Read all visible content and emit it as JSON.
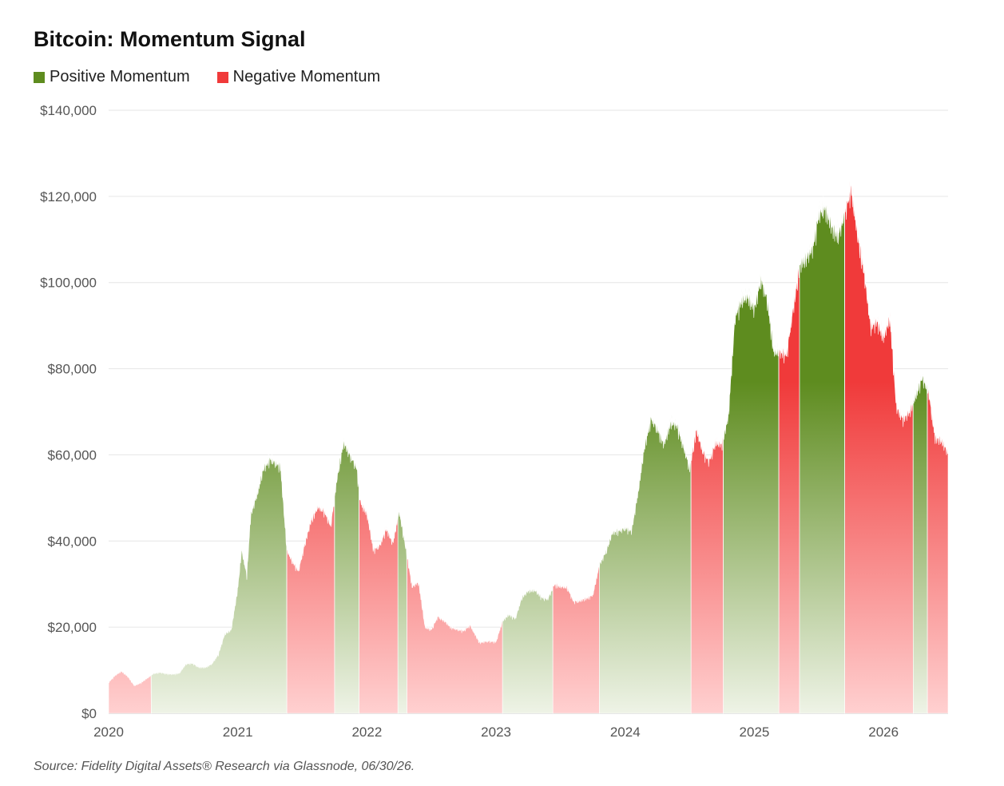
{
  "chart_data": {
    "type": "area",
    "title": "Bitcoin: Momentum Signal",
    "xlabel": "",
    "ylabel": "",
    "x_ticks": [
      "2020",
      "2021",
      "2022",
      "2023",
      "2024",
      "2025",
      "2026"
    ],
    "y_ticks": [
      "$0",
      "$20,000",
      "$40,000",
      "$60,000",
      "$80,000",
      "$100,000",
      "$120,000",
      "$140,000"
    ],
    "xlim": [
      2020.0,
      2026.5
    ],
    "ylim": [
      0,
      140000
    ],
    "grid": true,
    "legend_position": "top-left",
    "series": [
      {
        "name": "Positive Momentum",
        "color": "#5e8c1f"
      },
      {
        "name": "Negative Momentum",
        "color": "#f03a3a"
      }
    ],
    "price": [
      [
        2020.0,
        7200
      ],
      [
        2020.05,
        8800
      ],
      [
        2020.1,
        9800
      ],
      [
        2020.15,
        8500
      ],
      [
        2020.2,
        6400
      ],
      [
        2020.25,
        7100
      ],
      [
        2020.3,
        8200
      ],
      [
        2020.35,
        9300
      ],
      [
        2020.4,
        9500
      ],
      [
        2020.45,
        9200
      ],
      [
        2020.5,
        9100
      ],
      [
        2020.55,
        9400
      ],
      [
        2020.6,
        11500
      ],
      [
        2020.65,
        11600
      ],
      [
        2020.7,
        10700
      ],
      [
        2020.75,
        10700
      ],
      [
        2020.8,
        11500
      ],
      [
        2020.85,
        13700
      ],
      [
        2020.9,
        18500
      ],
      [
        2020.95,
        19500
      ],
      [
        2021.0,
        29000
      ],
      [
        2021.03,
        38000
      ],
      [
        2021.07,
        32000
      ],
      [
        2021.1,
        46000
      ],
      [
        2021.15,
        51000
      ],
      [
        2021.2,
        57000
      ],
      [
        2021.25,
        59000
      ],
      [
        2021.3,
        58000
      ],
      [
        2021.33,
        57500
      ],
      [
        2021.38,
        38000
      ],
      [
        2021.42,
        35500
      ],
      [
        2021.47,
        33000
      ],
      [
        2021.52,
        39500
      ],
      [
        2021.57,
        45000
      ],
      [
        2021.62,
        48000
      ],
      [
        2021.67,
        47000
      ],
      [
        2021.72,
        43500
      ],
      [
        2021.77,
        55000
      ],
      [
        2021.82,
        63000
      ],
      [
        2021.87,
        60000
      ],
      [
        2021.92,
        57000
      ],
      [
        2021.95,
        49000
      ],
      [
        2022.0,
        46500
      ],
      [
        2022.05,
        38000
      ],
      [
        2022.1,
        39000
      ],
      [
        2022.15,
        43000
      ],
      [
        2022.2,
        39500
      ],
      [
        2022.25,
        47000
      ],
      [
        2022.3,
        38500
      ],
      [
        2022.35,
        29500
      ],
      [
        2022.4,
        30500
      ],
      [
        2022.45,
        20000
      ],
      [
        2022.5,
        19500
      ],
      [
        2022.55,
        22500
      ],
      [
        2022.6,
        21500
      ],
      [
        2022.65,
        20000
      ],
      [
        2022.7,
        19500
      ],
      [
        2022.75,
        19200
      ],
      [
        2022.8,
        20500
      ],
      [
        2022.87,
        16500
      ],
      [
        2022.95,
        16800
      ],
      [
        2023.0,
        16600
      ],
      [
        2023.05,
        21500
      ],
      [
        2023.1,
        23000
      ],
      [
        2023.15,
        22000
      ],
      [
        2023.2,
        27000
      ],
      [
        2023.25,
        28500
      ],
      [
        2023.3,
        28700
      ],
      [
        2023.35,
        27000
      ],
      [
        2023.4,
        26500
      ],
      [
        2023.45,
        30000
      ],
      [
        2023.5,
        29500
      ],
      [
        2023.55,
        29300
      ],
      [
        2023.6,
        26000
      ],
      [
        2023.65,
        26200
      ],
      [
        2023.7,
        26800
      ],
      [
        2023.75,
        27500
      ],
      [
        2023.8,
        34500
      ],
      [
        2023.85,
        37500
      ],
      [
        2023.9,
        42000
      ],
      [
        2023.95,
        42500
      ],
      [
        2024.0,
        43000
      ],
      [
        2024.05,
        42500
      ],
      [
        2024.1,
        51500
      ],
      [
        2024.15,
        62000
      ],
      [
        2024.2,
        68500
      ],
      [
        2024.25,
        66000
      ],
      [
        2024.3,
        62500
      ],
      [
        2024.35,
        67500
      ],
      [
        2024.4,
        67000
      ],
      [
        2024.45,
        62000
      ],
      [
        2024.5,
        57000
      ],
      [
        2024.55,
        66000
      ],
      [
        2024.6,
        61000
      ],
      [
        2024.65,
        58500
      ],
      [
        2024.7,
        63000
      ],
      [
        2024.75,
        62500
      ],
      [
        2024.8,
        69500
      ],
      [
        2024.85,
        92000
      ],
      [
        2024.9,
        96000
      ],
      [
        2024.95,
        97000
      ],
      [
        2025.0,
        94000
      ],
      [
        2025.05,
        101000
      ],
      [
        2025.1,
        96000
      ],
      [
        2025.15,
        84000
      ],
      [
        2025.2,
        84000
      ],
      [
        2025.25,
        83500
      ],
      [
        2025.3,
        94000
      ],
      [
        2025.35,
        104000
      ],
      [
        2025.4,
        106000
      ],
      [
        2025.45,
        108000
      ],
      [
        2025.5,
        116000
      ],
      [
        2025.55,
        117500
      ],
      [
        2025.6,
        113000
      ],
      [
        2025.65,
        111000
      ],
      [
        2025.7,
        116000
      ],
      [
        2025.75,
        122000
      ],
      [
        2025.8,
        111000
      ],
      [
        2025.85,
        102500
      ],
      [
        2025.9,
        90000
      ],
      [
        2025.95,
        91000
      ],
      [
        2026.0,
        87500
      ],
      [
        2026.05,
        92000
      ],
      [
        2026.1,
        71000
      ],
      [
        2026.15,
        68500
      ],
      [
        2026.2,
        70000
      ],
      [
        2026.25,
        74000
      ],
      [
        2026.3,
        78000
      ],
      [
        2026.35,
        74500
      ],
      [
        2026.4,
        64000
      ],
      [
        2026.45,
        63500
      ],
      [
        2026.5,
        60500
      ]
    ],
    "regimes": [
      {
        "start": 2020.0,
        "end": 2020.33,
        "signal": "negative"
      },
      {
        "start": 2020.33,
        "end": 2021.38,
        "signal": "positive"
      },
      {
        "start": 2021.38,
        "end": 2021.75,
        "signal": "negative"
      },
      {
        "start": 2021.75,
        "end": 2021.94,
        "signal": "positive"
      },
      {
        "start": 2021.94,
        "end": 2022.24,
        "signal": "negative"
      },
      {
        "start": 2022.24,
        "end": 2022.31,
        "signal": "positive"
      },
      {
        "start": 2022.31,
        "end": 2023.05,
        "signal": "negative"
      },
      {
        "start": 2023.05,
        "end": 2023.44,
        "signal": "positive"
      },
      {
        "start": 2023.44,
        "end": 2023.8,
        "signal": "negative"
      },
      {
        "start": 2023.8,
        "end": 2024.51,
        "signal": "positive"
      },
      {
        "start": 2024.51,
        "end": 2024.76,
        "signal": "negative"
      },
      {
        "start": 2024.76,
        "end": 2025.19,
        "signal": "positive"
      },
      {
        "start": 2025.19,
        "end": 2025.35,
        "signal": "negative"
      },
      {
        "start": 2025.35,
        "end": 2025.7,
        "signal": "positive"
      },
      {
        "start": 2025.7,
        "end": 2026.23,
        "signal": "negative"
      },
      {
        "start": 2026.23,
        "end": 2026.34,
        "signal": "positive"
      },
      {
        "start": 2026.34,
        "end": 2026.5,
        "signal": "negative"
      }
    ]
  },
  "source": "Source: Fidelity Digital Assets® Research via Glassnode, 06/30/26."
}
